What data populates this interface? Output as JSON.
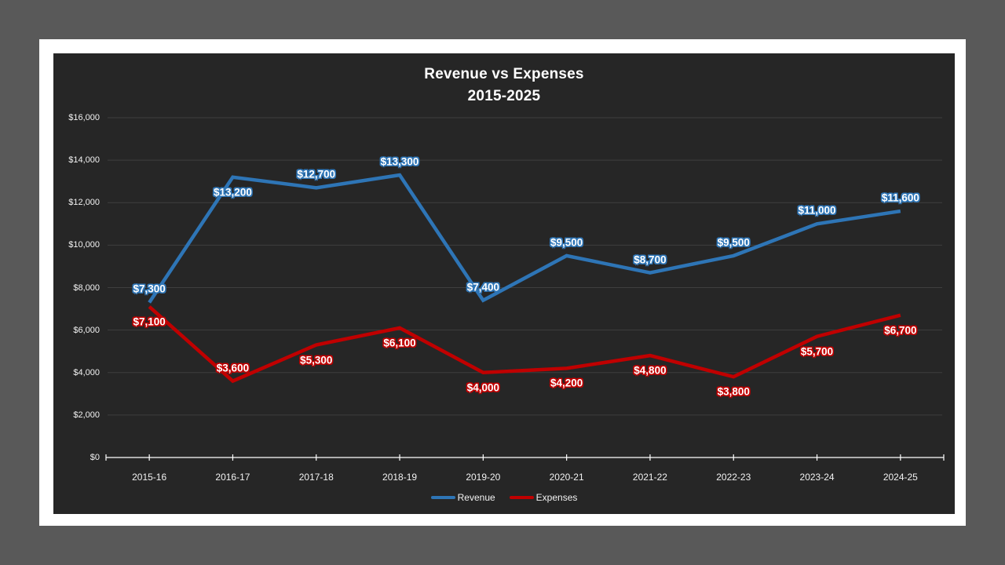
{
  "page": {
    "background_color": "#595959",
    "slide_color": "#ffffff",
    "chart_background_color": "#262626",
    "gridline_color": "#3f3f3f",
    "axis_color": "#ffffff",
    "axis_text_color": "#f2f2f2"
  },
  "chart_data": {
    "type": "line",
    "title": "Revenue vs Expenses",
    "subtitle": "2015-2025",
    "categories": [
      "2015-16",
      "2016-17",
      "2017-18",
      "2018-19",
      "2019-20",
      "2020-21",
      "2021-22",
      "2022-23",
      "2023-24",
      "2024-25"
    ],
    "series": [
      {
        "name": "Revenue",
        "color": "#2e75b6",
        "values": [
          7300,
          13200,
          12700,
          13300,
          7400,
          9500,
          8700,
          9500,
          11000,
          11600
        ],
        "labels": [
          "$7,300",
          "$13,200",
          "$12,700",
          "$13,300",
          "$7,400",
          "$9,500",
          "$8,700",
          "$9,500",
          "$11,000",
          "$11,600"
        ],
        "label_positions": [
          "above",
          "below",
          "above",
          "above",
          "above",
          "above",
          "above",
          "above",
          "above",
          "above"
        ]
      },
      {
        "name": "Expenses",
        "color": "#c00000",
        "values": [
          7100,
          3600,
          5300,
          6100,
          4000,
          4200,
          4800,
          3800,
          5700,
          6700
        ],
        "labels": [
          "$7,100",
          "$3,600",
          "$5,300",
          "$6,100",
          "$4,000",
          "$4,200",
          "$4,800",
          "$3,800",
          "$5,700",
          "$6,700"
        ],
        "label_positions": [
          "below",
          "above",
          "below",
          "below",
          "below",
          "below",
          "below",
          "below",
          "below",
          "below"
        ]
      }
    ],
    "ylim": [
      0,
      16000
    ],
    "ytick_step": 2000,
    "ytick_labels": [
      "$0",
      "$2,000",
      "$4,000",
      "$6,000",
      "$8,000",
      "$10,000",
      "$12,000",
      "$14,000",
      "$16,000"
    ],
    "grid": true,
    "legend_position": "bottom"
  },
  "legend": {
    "items": [
      {
        "label": "Revenue",
        "color": "#2e75b6"
      },
      {
        "label": "Expenses",
        "color": "#c00000"
      }
    ]
  }
}
